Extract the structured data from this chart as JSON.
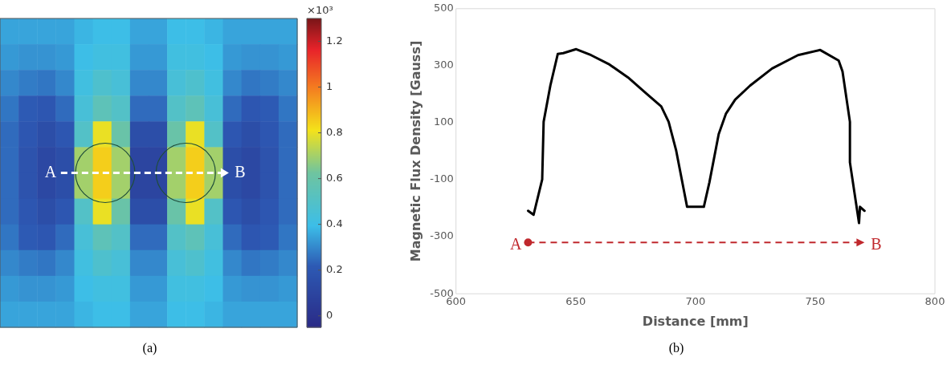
{
  "chart_data": [
    {
      "type": "heatmap",
      "categories": [
        null,
        null,
        null,
        null,
        null,
        null,
        null,
        null,
        null,
        null,
        null,
        null,
        null,
        null,
        null,
        null
      ],
      "y_categories": [
        null,
        null,
        null,
        null,
        null,
        null,
        null,
        null,
        null,
        null,
        null,
        null
      ],
      "cells": [
        [
          0.35,
          0.35,
          0.35,
          0.35,
          0.38,
          0.4,
          0.4,
          0.35,
          0.35,
          0.4,
          0.4,
          0.38,
          0.35,
          0.35,
          0.35,
          0.35
        ],
        [
          0.33,
          0.32,
          0.32,
          0.33,
          0.4,
          0.42,
          0.42,
          0.33,
          0.33,
          0.42,
          0.42,
          0.4,
          0.33,
          0.32,
          0.32,
          0.33
        ],
        [
          0.3,
          0.28,
          0.27,
          0.3,
          0.42,
          0.48,
          0.45,
          0.3,
          0.3,
          0.45,
          0.48,
          0.42,
          0.3,
          0.27,
          0.28,
          0.3
        ],
        [
          0.27,
          0.22,
          0.2,
          0.25,
          0.45,
          0.55,
          0.5,
          0.25,
          0.25,
          0.5,
          0.55,
          0.45,
          0.25,
          0.2,
          0.22,
          0.27
        ],
        [
          0.25,
          0.2,
          0.15,
          0.2,
          0.5,
          0.8,
          0.6,
          0.15,
          0.15,
          0.6,
          0.8,
          0.5,
          0.2,
          0.15,
          0.2,
          0.25
        ],
        [
          0.25,
          0.18,
          0.12,
          0.15,
          0.7,
          0.85,
          0.7,
          0.1,
          0.1,
          0.7,
          0.85,
          0.7,
          0.15,
          0.12,
          0.18,
          0.25
        ],
        [
          0.25,
          0.18,
          0.12,
          0.15,
          0.7,
          0.85,
          0.7,
          0.1,
          0.1,
          0.7,
          0.85,
          0.7,
          0.15,
          0.12,
          0.18,
          0.25
        ],
        [
          0.25,
          0.2,
          0.15,
          0.2,
          0.5,
          0.8,
          0.6,
          0.15,
          0.15,
          0.6,
          0.8,
          0.5,
          0.2,
          0.15,
          0.2,
          0.25
        ],
        [
          0.27,
          0.22,
          0.2,
          0.25,
          0.45,
          0.55,
          0.5,
          0.25,
          0.25,
          0.5,
          0.55,
          0.45,
          0.25,
          0.2,
          0.22,
          0.27
        ],
        [
          0.3,
          0.28,
          0.27,
          0.3,
          0.42,
          0.48,
          0.45,
          0.3,
          0.3,
          0.45,
          0.48,
          0.42,
          0.3,
          0.27,
          0.28,
          0.3
        ],
        [
          0.33,
          0.32,
          0.32,
          0.33,
          0.4,
          0.42,
          0.42,
          0.33,
          0.33,
          0.42,
          0.42,
          0.4,
          0.33,
          0.32,
          0.32,
          0.33
        ],
        [
          0.35,
          0.35,
          0.35,
          0.35,
          0.38,
          0.4,
          0.4,
          0.35,
          0.35,
          0.4,
          0.4,
          0.38,
          0.35,
          0.35,
          0.35,
          0.35
        ]
      ],
      "clim": [
        -0.05,
        1.3
      ],
      "cticks": [
        0,
        0.2,
        0.4,
        0.6,
        0.8,
        1,
        1.2
      ],
      "clabel": "×10³",
      "annotations": [
        "A",
        "B",
        "(a)"
      ]
    },
    {
      "type": "line",
      "xlabel": "Distance [mm]",
      "ylabel": "Magnetic Flux Density [Gauss]",
      "color": "#000000",
      "marker": "none",
      "grid": false,
      "x": [
        630.1,
        632.4,
        636,
        636.6,
        639.4,
        642.5,
        644.8,
        650.2,
        656.4,
        664.1,
        671.8,
        679.5,
        685.7,
        688.8,
        691.9,
        696.5,
        703.5,
        705.8,
        709.7,
        712.7,
        716.6,
        722.8,
        732,
        742.8,
        752.1,
        759.8,
        761.4,
        764.5,
        764.5,
        768.3,
        768.7,
        770.6
      ],
      "values": [
        -209,
        -223,
        -99,
        103,
        230,
        341,
        344,
        358,
        337,
        304,
        259,
        202,
        157,
        103,
        4,
        -195,
        -195,
        -110,
        60,
        131,
        181,
        230,
        290,
        337,
        355,
        318,
        280,
        103,
        -39,
        -252,
        -195,
        -209
      ],
      "xlim": [
        600,
        800
      ],
      "xticks": [
        600,
        650,
        700,
        750,
        800
      ],
      "ylim": [
        -500,
        500
      ],
      "yticks": [
        -500,
        -300,
        -100,
        100,
        300,
        500
      ],
      "annotations": [
        "A",
        "B",
        "(b)"
      ]
    }
  ]
}
